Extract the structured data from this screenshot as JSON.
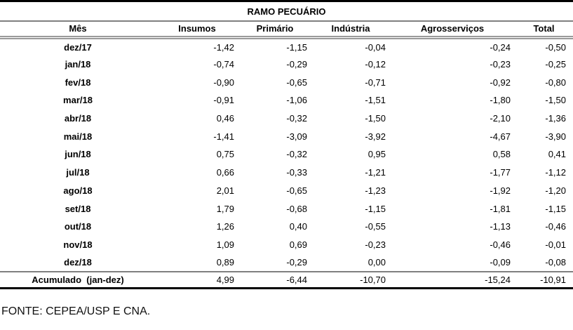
{
  "title": "RAMO PECUÁRIO",
  "table": {
    "columns": [
      "Mês",
      "Insumos",
      "Primário",
      "Indústria",
      "Agrosserviços",
      "Total"
    ],
    "rows": [
      {
        "mes": "dez/17",
        "values": [
          "-1,42",
          "-1,15",
          "-0,04",
          "-0,24",
          "-0,50"
        ]
      },
      {
        "mes": "jan/18",
        "values": [
          "-0,74",
          "-0,29",
          "-0,12",
          "-0,23",
          "-0,25"
        ]
      },
      {
        "mes": "fev/18",
        "values": [
          "-0,90",
          "-0,65",
          "-0,71",
          "-0,92",
          "-0,80"
        ]
      },
      {
        "mes": "mar/18",
        "values": [
          "-0,91",
          "-1,06",
          "-1,51",
          "-1,80",
          "-1,50"
        ]
      },
      {
        "mes": "abr/18",
        "values": [
          "0,46",
          "-0,32",
          "-1,50",
          "-2,10",
          "-1,36"
        ]
      },
      {
        "mes": "mai/18",
        "values": [
          "-1,41",
          "-3,09",
          "-3,92",
          "-4,67",
          "-3,90"
        ]
      },
      {
        "mes": "jun/18",
        "values": [
          "0,75",
          "-0,32",
          "0,95",
          "0,58",
          "0,41"
        ]
      },
      {
        "mes": "jul/18",
        "values": [
          "0,66",
          "-0,33",
          "-1,21",
          "-1,77",
          "-1,12"
        ]
      },
      {
        "mes": "ago/18",
        "values": [
          "2,01",
          "-0,65",
          "-1,23",
          "-1,92",
          "-1,20"
        ]
      },
      {
        "mes": "set/18",
        "values": [
          "1,79",
          "-0,68",
          "-1,15",
          "-1,81",
          "-1,15"
        ]
      },
      {
        "mes": "out/18",
        "values": [
          "1,26",
          "0,40",
          "-0,55",
          "-1,13",
          "-0,46"
        ]
      },
      {
        "mes": "nov/18",
        "values": [
          "1,09",
          "0,69",
          "-0,23",
          "-0,46",
          "-0,01"
        ]
      },
      {
        "mes": "dez/18",
        "values": [
          "0,89",
          "-0,29",
          "0,00",
          "-0,09",
          "-0,08"
        ]
      }
    ],
    "total_row": {
      "label": "Acumulado  (jan-dez)",
      "values": [
        "4,99",
        "-6,44",
        "-10,70",
        "-15,24",
        "-10,91"
      ]
    }
  },
  "footer": "FONTE: CEPEA/USP E CNA.",
  "colors": {
    "line_black": "#000000",
    "line_gray": "#808080",
    "line_double_gray": "#9a9a9a",
    "text": "#000000"
  }
}
